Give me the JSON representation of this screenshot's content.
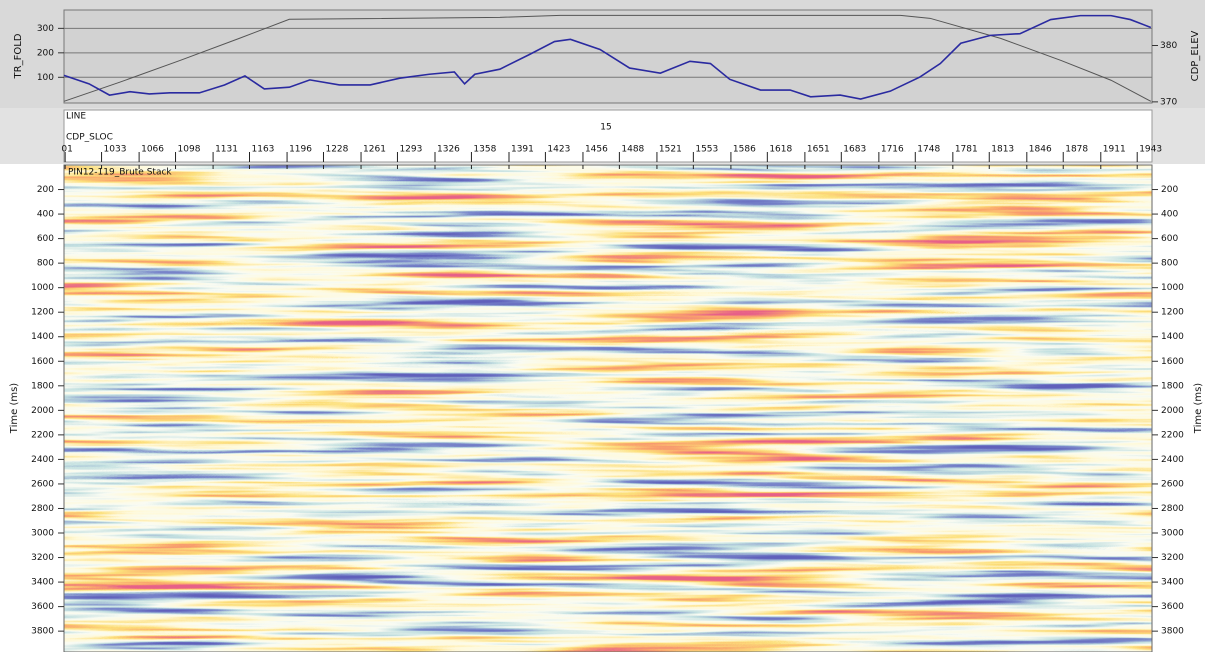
{
  "chart_data": [
    {
      "type": "line",
      "y_label": "TR_FOLD",
      "y2_label": "CDP_ELEV",
      "grid": true,
      "xlim": [
        1000,
        1956
      ],
      "xticks": [
        {
          "value": 1001,
          "label": "01"
        },
        1033,
        1066,
        1098,
        1131,
        1163,
        1196,
        1228,
        1261,
        1293,
        1326,
        1358,
        1391,
        1423,
        1456,
        1488,
        1521,
        1553,
        1586,
        1618,
        1651,
        1683,
        1716,
        1748,
        1781,
        1813,
        1846,
        1878,
        1911,
        1943
      ],
      "ylim": [
        -5,
        375
      ],
      "yticks": [
        100,
        200,
        300
      ],
      "y2lim": [
        369.8,
        386.3
      ],
      "y2ticks": [
        370,
        380
      ],
      "series": [
        {
          "name": "TR_FOLD",
          "color": "#555555",
          "axis": "y",
          "x": [
            1000,
            1049,
            1102,
            1154,
            1198,
            1383,
            1436,
            1735,
            1761,
            1823,
            1876,
            1920,
            1955
          ],
          "values": [
            2,
            80,
            169,
            259,
            337,
            345,
            353,
            353,
            341,
            259,
            169,
            88,
            2
          ]
        },
        {
          "name": "CDP_ELEV",
          "color": "#2a2aa0",
          "axis": "y2",
          "x": [
            1000,
            1022,
            1040,
            1058,
            1075,
            1093,
            1119,
            1141,
            1159,
            1176,
            1198,
            1216,
            1242,
            1269,
            1295,
            1321,
            1343,
            1352,
            1361,
            1383,
            1409,
            1431,
            1445,
            1471,
            1497,
            1524,
            1550,
            1568,
            1585,
            1612,
            1638,
            1656,
            1682,
            1700,
            1726,
            1752,
            1770,
            1788,
            1814,
            1840,
            1867,
            1893,
            1920,
            1937,
            1955
          ],
          "values": [
            374.7,
            373.2,
            371.2,
            371.8,
            371.4,
            371.6,
            371.6,
            373.0,
            374.6,
            372.3,
            372.6,
            373.9,
            373.0,
            373.0,
            374.2,
            374.9,
            375.3,
            373.2,
            374.9,
            375.8,
            378.4,
            380.7,
            381.1,
            379.3,
            376.0,
            375.1,
            377.2,
            376.8,
            374.0,
            372.1,
            372.1,
            370.9,
            371.2,
            370.5,
            371.9,
            374.4,
            376.8,
            380.4,
            381.8,
            382.1,
            384.6,
            385.3,
            385.3,
            384.6,
            383.2
          ]
        }
      ]
    },
    {
      "type": "seismic",
      "title": "PIN12-119_Brute Stack",
      "y_label": "Time (ms)",
      "y2_label": "Time (ms)",
      "x_label": "CDP_SLOC",
      "line_label": "LINE",
      "line_value": 15,
      "ylim": [
        0,
        3970
      ],
      "yticks": [
        200,
        400,
        600,
        800,
        1000,
        1200,
        1400,
        1600,
        1800,
        2000,
        2200,
        2400,
        2600,
        2800,
        3000,
        3200,
        3400,
        3600,
        3800
      ]
    }
  ]
}
